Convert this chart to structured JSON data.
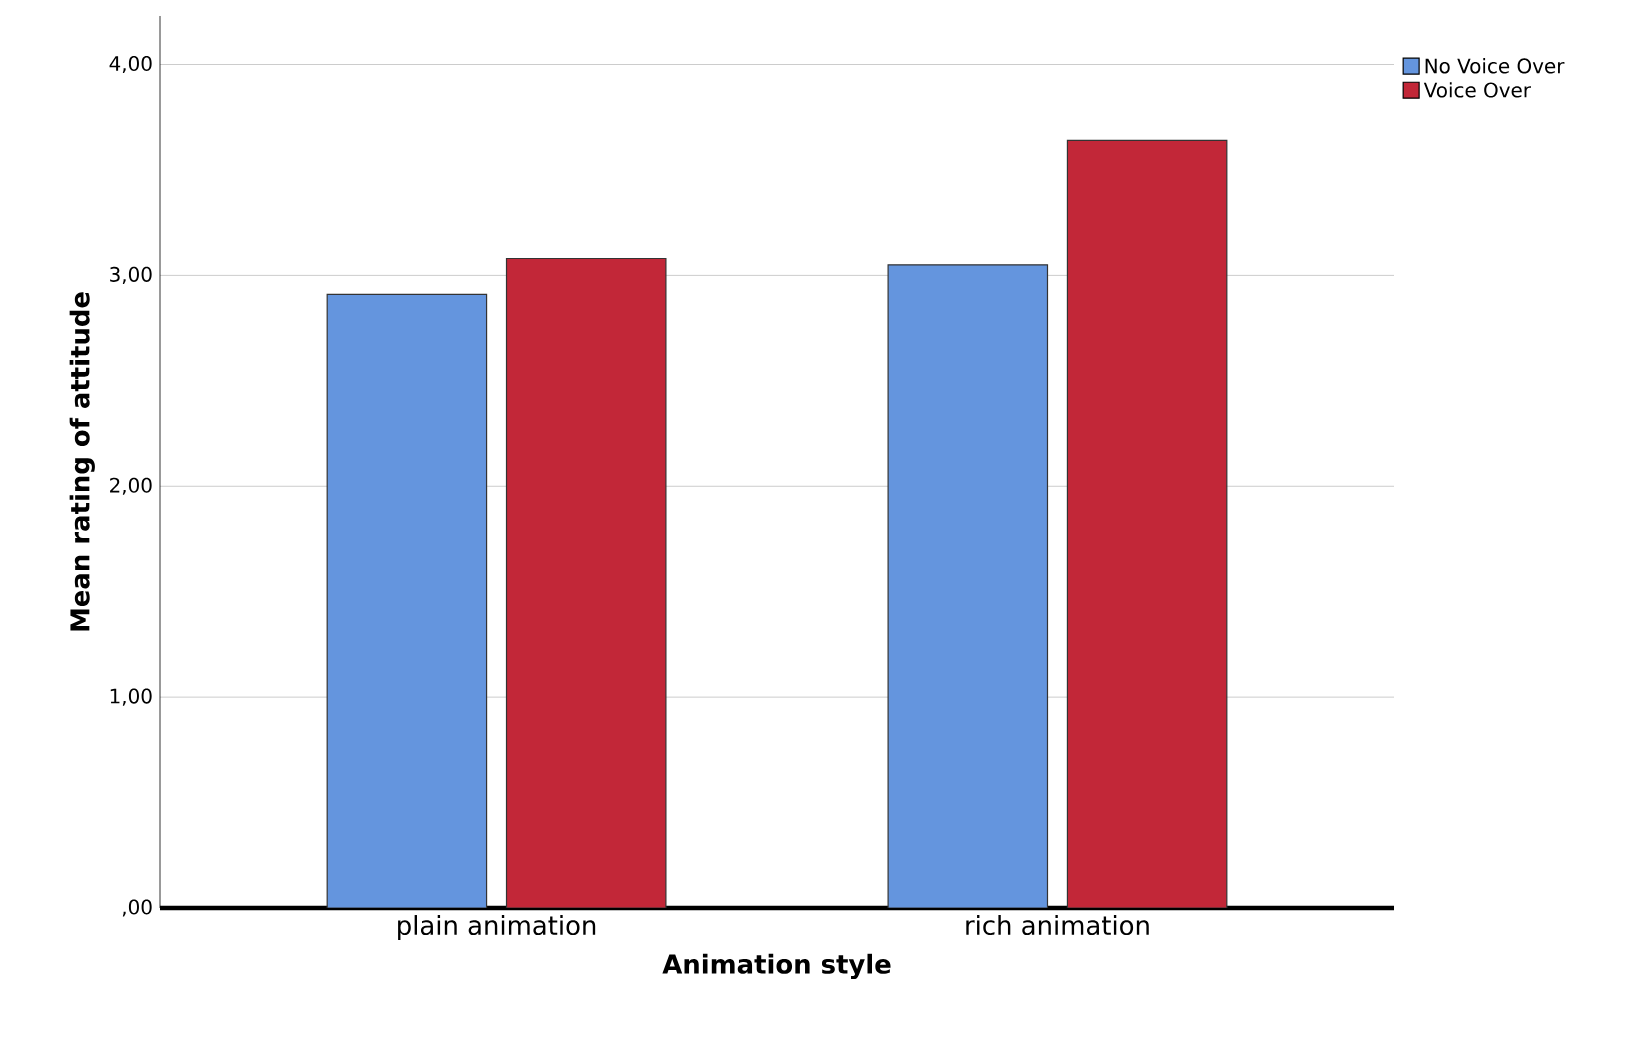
{
  "chart_data": {
    "type": "bar",
    "xlabel": "Animation style",
    "ylabel": "Mean rating of attitude",
    "categories": [
      "plain animation",
      "rich animation"
    ],
    "series": [
      {
        "name": "No Voice Over",
        "color": "#6495de",
        "values": [
          2.91,
          3.05
        ]
      },
      {
        "name": "Voice Over",
        "color": "#c22738",
        "values": [
          3.08,
          3.64
        ]
      }
    ],
    "ylim": [
      0,
      4.23
    ],
    "yticks": [
      {
        "value": 0,
        "label": ",00"
      },
      {
        "value": 1,
        "label": "1,00"
      },
      {
        "value": 2,
        "label": "2,00"
      },
      {
        "value": 3,
        "label": "3,00"
      },
      {
        "value": 4,
        "label": "4,00"
      }
    ],
    "grid": "y",
    "legend": "top right"
  }
}
